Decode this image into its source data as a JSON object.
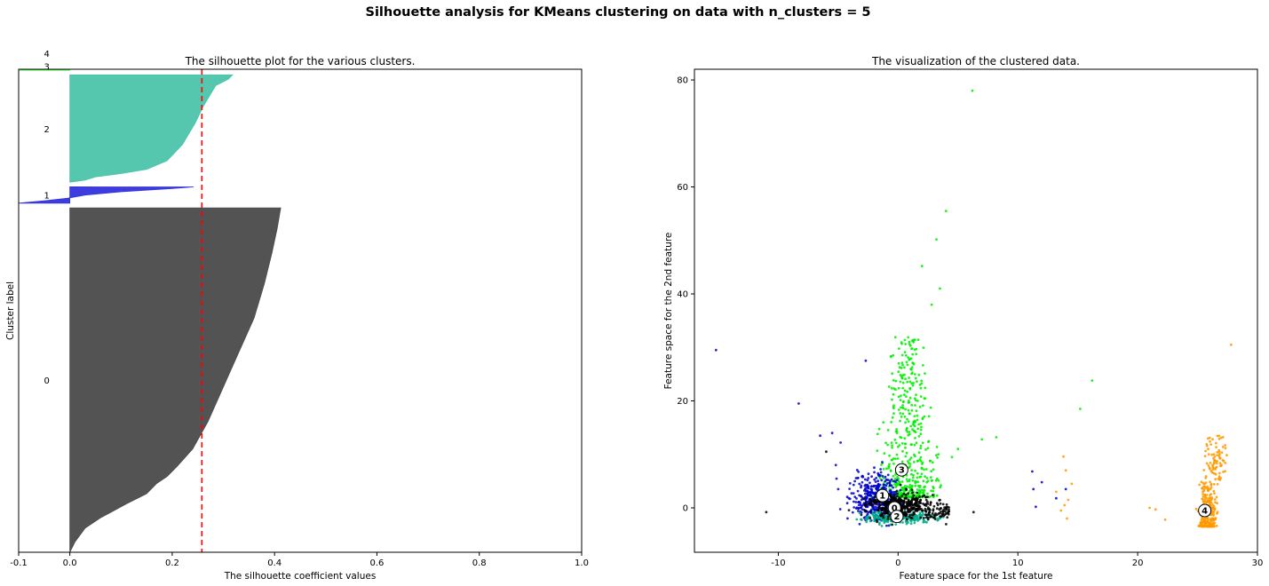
{
  "figure": {
    "suptitle": "Silhouette analysis for KMeans clustering on data with n_clusters = 5"
  },
  "chart_data": [
    {
      "type": "area",
      "title": "The silhouette plot for the various clusters.",
      "xlabel": "The silhouette coefficient values",
      "ylabel": "Cluster label",
      "xlim": [
        -0.1,
        1.0
      ],
      "ylim": [
        0,
        1035
      ],
      "xticks": [
        "-0.1",
        "0.0",
        "0.2",
        "0.4",
        "0.6",
        "0.8",
        "1.0"
      ],
      "xtick_values": [
        -0.1,
        0.0,
        0.2,
        0.4,
        0.6,
        0.8,
        1.0
      ],
      "grid": false,
      "average_silhouette_score": 0.258,
      "clusters": [
        {
          "label": "0",
          "color": "#4a4a4a",
          "y_range": [
            0,
            738
          ],
          "profile": [
            [
              0,
              0
            ],
            [
              0.03,
              0.01
            ],
            [
              0.07,
              0.03
            ],
            [
              0.1,
              0.06
            ],
            [
              0.14,
              0.11
            ],
            [
              0.17,
              0.15
            ],
            [
              0.2,
              0.17
            ],
            [
              0.22,
              0.19
            ],
            [
              0.25,
              0.21
            ],
            [
              0.3,
              0.24
            ],
            [
              0.38,
              0.27
            ],
            [
              0.48,
              0.3
            ],
            [
              0.58,
              0.33
            ],
            [
              0.68,
              0.36
            ],
            [
              0.78,
              0.38
            ],
            [
              0.87,
              0.395
            ],
            [
              0.94,
              0.405
            ],
            [
              1,
              0.412
            ]
          ]
        },
        {
          "label": "1",
          "color": "#3333dd",
          "y_range": [
            748,
            783
          ],
          "profile": [
            [
              0,
              -0.1
            ],
            [
              0.15,
              -0.05
            ],
            [
              0.3,
              -0.005
            ],
            [
              0.5,
              0.03
            ],
            [
              0.7,
              0.1
            ],
            [
              0.9,
              0.2
            ],
            [
              1,
              0.242
            ]
          ]
        },
        {
          "label": "2",
          "color": "#4cc4aa",
          "y_range": [
            793,
            1023
          ],
          "profile": [
            [
              0,
              0
            ],
            [
              0.02,
              0.03
            ],
            [
              0.05,
              0.05
            ],
            [
              0.08,
              0.1
            ],
            [
              0.12,
              0.15
            ],
            [
              0.2,
              0.19
            ],
            [
              0.35,
              0.22
            ],
            [
              0.55,
              0.245
            ],
            [
              0.7,
              0.26
            ],
            [
              0.82,
              0.275
            ],
            [
              0.9,
              0.285
            ],
            [
              0.96,
              0.31
            ],
            [
              1,
              0.318
            ]
          ]
        },
        {
          "label": "3",
          "color": "#44ee44",
          "y_range": [
            1033,
            1051
          ],
          "profile": [
            [
              0,
              -0.1
            ],
            [
              0.2,
              -0.05
            ],
            [
              0.3,
              0.0
            ],
            [
              0.55,
              0.08
            ],
            [
              0.8,
              0.18
            ],
            [
              1,
              0.28
            ]
          ]
        },
        {
          "label": "4",
          "color": "#f0a030",
          "y_range": [
            1061,
            1077
          ],
          "profile": [
            [
              0,
              -0.1
            ],
            [
              0.3,
              0.0
            ],
            [
              0.55,
              0.1
            ],
            [
              0.8,
              0.22
            ],
            [
              1,
              0.37
            ]
          ]
        }
      ]
    },
    {
      "type": "scatter",
      "title": "The visualization of the clustered data.",
      "xlabel": "Feature space for the 1st feature",
      "ylabel": "Feature space for the 2nd feature",
      "xlim": [
        -17,
        30
      ],
      "ylim": [
        -8.3,
        82
      ],
      "xticks": [
        -10,
        0,
        10,
        20,
        30
      ],
      "yticks": [
        0,
        20,
        40,
        60,
        80
      ],
      "grid": false,
      "clusters": [
        {
          "label": "0",
          "color": "#000000",
          "center": [
            -0.3,
            0.0
          ]
        },
        {
          "label": "1",
          "color": "#0000cc",
          "center": [
            -1.3,
            2.3
          ]
        },
        {
          "label": "2",
          "color": "#00aa88",
          "center": [
            -0.1,
            -1.6
          ]
        },
        {
          "label": "3",
          "color": "#00ee00",
          "center": [
            0.3,
            7.1
          ]
        },
        {
          "label": "4",
          "color": "#ff9900",
          "center": [
            25.6,
            -0.5
          ]
        }
      ],
      "outliers": [
        {
          "cluster": "3",
          "x": [
            6.2,
            4.0,
            3.2,
            2.0,
            3.5,
            2.8,
            16.2,
            15.2,
            7.0,
            8.2,
            4.5,
            5.0
          ],
          "y": [
            78,
            55.5,
            50.2,
            45.2,
            41,
            38,
            23.8,
            18.5,
            12.8,
            13.2,
            9.5,
            11
          ]
        },
        {
          "cluster": "1",
          "x": [
            -15.2,
            -8.3,
            -2.7,
            -6.5,
            -5.5,
            -5.2,
            -4.8,
            -5.0,
            11.2,
            11.3,
            12,
            11.5,
            13.2,
            14.0
          ],
          "y": [
            29.5,
            19.5,
            27.5,
            13.5,
            14,
            8,
            12.2,
            3.5,
            6.8,
            3.5,
            4.8,
            0.2,
            1.8,
            3.5
          ]
        },
        {
          "cluster": "0",
          "x": [
            -11,
            6.3,
            -6.0
          ],
          "y": [
            -0.8,
            -0.8,
            10.5
          ]
        },
        {
          "cluster": "4",
          "x": [
            27.8,
            21,
            21.5,
            22.3,
            13.2,
            14.5,
            13.8,
            14.0,
            13.6,
            14.2,
            13.9,
            14.1
          ],
          "y": [
            30.5,
            0,
            -0.3,
            -2.2,
            3.0,
            4.5,
            9.6,
            7.0,
            -0.5,
            1.5,
            0.5,
            -2.0
          ]
        }
      ]
    }
  ]
}
